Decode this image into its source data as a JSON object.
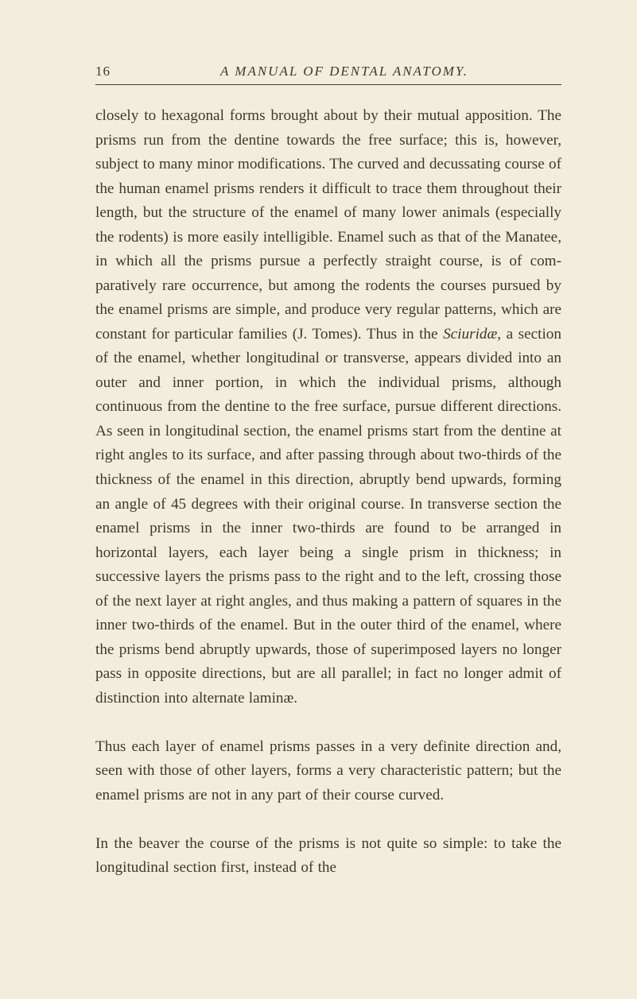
{
  "page": {
    "number": "16",
    "running_title": "A MANUAL OF DENTAL ANATOMY.",
    "background_color": "#f2eedd",
    "text_color": "#3c3a28",
    "rule_color": "#3c3a28",
    "body_font_size_pt": 14,
    "header_font_size_pt": 13
  },
  "body": {
    "p1a": "closely to hexagonal forms brought about by their mutual apposition. The prisms run from the dentine towards the free surface; this is, however, subject to many minor modifications. The curved and decussating course of the human enamel prisms renders it difficult to trace them throughout their length, but the structure of the enamel of many lower animals (especially the rodents) is more easily intelligible. Enamel such as that of the Manatee, in which all the prisms pursue a perfectly straight course, is of com­paratively rare occurrence, but among the rodents the courses pursued by the enamel prisms are simple, and pro­duce very regular patterns, which are constant for particular families (J. Tomes). Thus in the ",
    "sciuridae": "Sciuridæ",
    "p1b": ", a section of the enamel, whether longitudinal or transverse, appears divided into an outer and inner portion, in which the individual prisms, although continuous from the dentine to the free surface, pursue different directions. As seen in longitudinal section, the enamel prisms start from the dentine at right angles to its surface, and after passing through about two-thirds of the thickness of the enamel in this direction, abruptly bend upwards, forming an angle of 45 degrees with their original course. In transverse section the enamel prisms in the inner two-thirds are found to be arranged in horizontal layers, each layer being a single prism in thick­ness; in successive layers the prisms pass to the right and to the left, crossing those of the next layer at right angles, and thus making a pattern of squares in the inner two-thirds of the enamel. But in the outer third of the enamel, where the prisms bend abruptly upwards, those of super­imposed layers no longer pass in opposite directions, but are all parallel; in fact no longer admit of distinction into alternate laminæ.",
    "p2": "Thus each layer of enamel prisms passes in a very definite direction and, seen with those of other layers, forms a very characteristic pattern; but the enamel prisms are not in any part of their course curved.",
    "p3": "In the beaver the course of the prisms is not quite so simple: to take the longitudinal section first, instead of the"
  }
}
